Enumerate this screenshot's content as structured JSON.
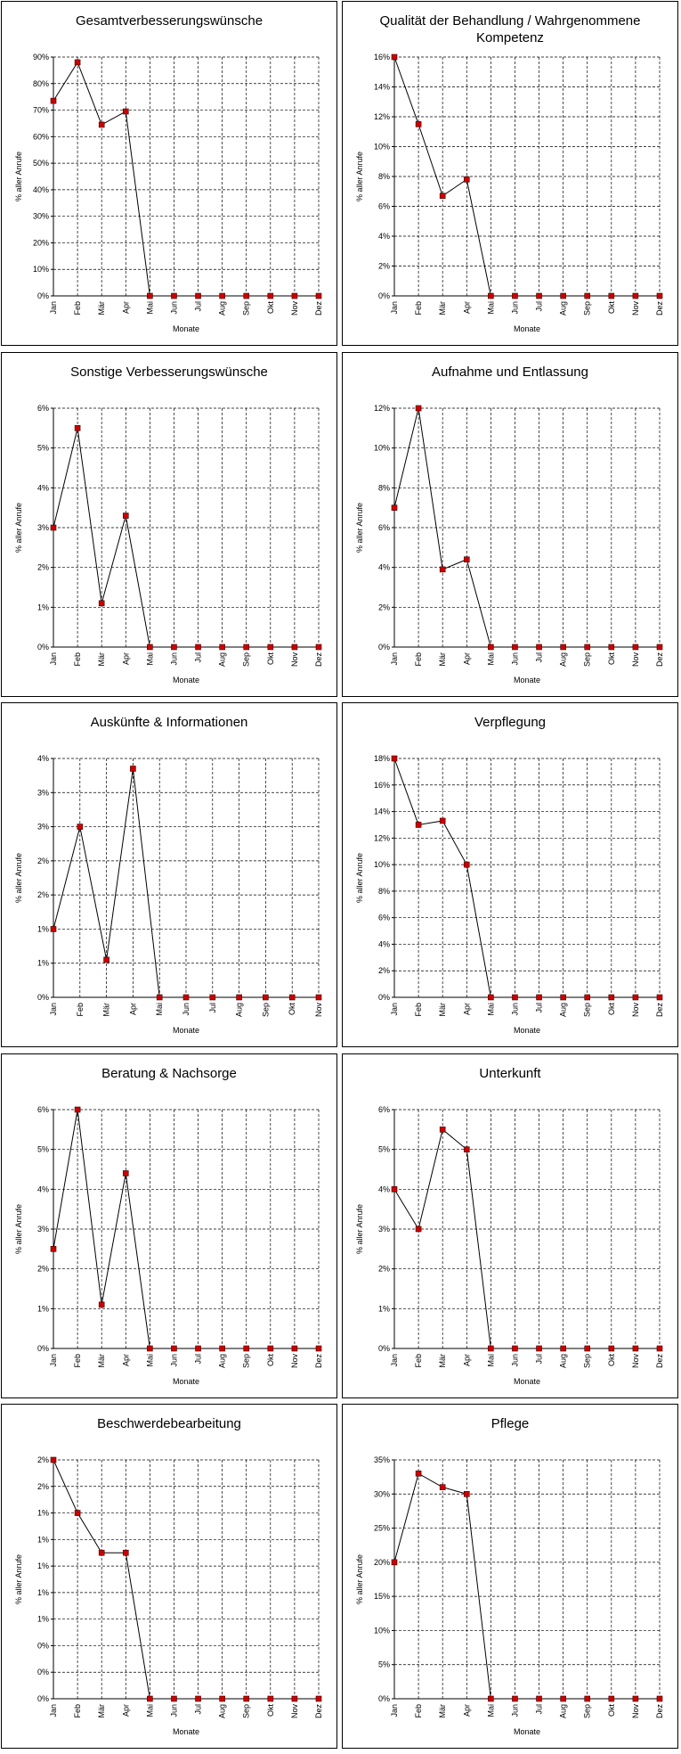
{
  "chart_data": [
    {
      "type": "line",
      "title": "Gesamtverbesserungswünsche",
      "y_label": "% aller Anrufe",
      "x_label": "Monate",
      "categories": [
        "Jan",
        "Feb",
        "Mär",
        "Apr",
        "Mai",
        "Jun",
        "Jul",
        "Aug",
        "Sep",
        "Okt",
        "Nov",
        "Dez"
      ],
      "values": [
        73.5,
        88,
        64.5,
        69.5,
        0,
        0,
        0,
        0,
        0,
        0,
        0,
        0
      ],
      "color": "#000000",
      "marker_color": "#cc0000",
      "grid": true,
      "ylim": [
        0,
        90
      ],
      "yticks": [
        {
          "value": 0,
          "label": "0%"
        },
        {
          "value": 10,
          "label": "10%"
        },
        {
          "value": 20,
          "label": "20%"
        },
        {
          "value": 30,
          "label": "30%"
        },
        {
          "value": 40,
          "label": "40%"
        },
        {
          "value": 50,
          "label": "50%"
        },
        {
          "value": 60,
          "label": "60%"
        },
        {
          "value": 70,
          "label": "70%"
        },
        {
          "value": 80,
          "label": "80%"
        },
        {
          "value": 90,
          "label": "90%"
        }
      ]
    },
    {
      "type": "line",
      "title": "Qualität der Behandlung / Wahrgenommene Kompetenz",
      "y_label": "% aller Anrufe",
      "x_label": "Monate",
      "categories": [
        "Jan",
        "Feb",
        "Mär",
        "Apr",
        "Mai",
        "Jun",
        "Jul",
        "Aug",
        "Sep",
        "Okt",
        "Nov",
        "Dez"
      ],
      "values": [
        16,
        11.5,
        6.7,
        7.8,
        0,
        0,
        0,
        0,
        0,
        0,
        0,
        0
      ],
      "color": "#000000",
      "marker_color": "#cc0000",
      "grid": true,
      "ylim": [
        0,
        16
      ],
      "yticks": [
        {
          "value": 0,
          "label": "0%"
        },
        {
          "value": 2,
          "label": "2%"
        },
        {
          "value": 4,
          "label": "4%"
        },
        {
          "value": 6,
          "label": "6%"
        },
        {
          "value": 8,
          "label": "8%"
        },
        {
          "value": 10,
          "label": "10%"
        },
        {
          "value": 12,
          "label": "12%"
        },
        {
          "value": 14,
          "label": "14%"
        },
        {
          "value": 16,
          "label": "16%"
        }
      ]
    },
    {
      "type": "line",
      "title": "Sonstige Verbesserungswünsche",
      "y_label": "% aller Anrufe",
      "x_label": "Monate",
      "categories": [
        "Jan",
        "Feb",
        "Mär",
        "Apr",
        "Mai",
        "Jun",
        "Jul",
        "Aug",
        "Sep",
        "Okt",
        "Nov",
        "Dez"
      ],
      "values": [
        3,
        5.5,
        1.1,
        3.3,
        0,
        0,
        0,
        0,
        0,
        0,
        0,
        0
      ],
      "color": "#000000",
      "marker_color": "#cc0000",
      "grid": true,
      "ylim": [
        0,
        6
      ],
      "yticks": [
        {
          "value": 0,
          "label": "0%"
        },
        {
          "value": 1,
          "label": "1%"
        },
        {
          "value": 2,
          "label": "2%"
        },
        {
          "value": 3,
          "label": "3%"
        },
        {
          "value": 4,
          "label": "4%"
        },
        {
          "value": 5,
          "label": "5%"
        },
        {
          "value": 6,
          "label": "6%"
        }
      ]
    },
    {
      "type": "line",
      "title": "Aufnahme und Entlassung",
      "y_label": "% aller Anrufe",
      "x_label": "Monate",
      "categories": [
        "Jan",
        "Feb",
        "Mär",
        "Apr",
        "Mai",
        "Jun",
        "Jul",
        "Aug",
        "Sep",
        "Okt",
        "Nov",
        "Dez"
      ],
      "values": [
        7,
        12,
        3.9,
        4.4,
        0,
        0,
        0,
        0,
        0,
        0,
        0,
        0
      ],
      "color": "#000000",
      "marker_color": "#cc0000",
      "grid": true,
      "ylim": [
        0,
        12
      ],
      "yticks": [
        {
          "value": 0,
          "label": "0%"
        },
        {
          "value": 2,
          "label": "2%"
        },
        {
          "value": 4,
          "label": "4%"
        },
        {
          "value": 6,
          "label": "6%"
        },
        {
          "value": 8,
          "label": "8%"
        },
        {
          "value": 10,
          "label": "10%"
        },
        {
          "value": 12,
          "label": "12%"
        }
      ]
    },
    {
      "type": "line",
      "title": "Auskünfte & Informationen",
      "y_label": "% aller Anrufe",
      "x_label": "Monate",
      "categories": [
        "Jan",
        "Feb",
        "Mär",
        "Apr",
        "Mai",
        "Jun",
        "Jul",
        "Aug",
        "Sep",
        "Okt",
        "Nov"
      ],
      "values": [
        1,
        2.5,
        0.55,
        3.35,
        0,
        0,
        0,
        0,
        0,
        0,
        0
      ],
      "color": "#000000",
      "marker_color": "#cc0000",
      "grid": true,
      "ylim": [
        0,
        3.5
      ],
      "yticks": [
        {
          "value": 0,
          "label": "0%"
        },
        {
          "value": 0.5,
          "label": "1%"
        },
        {
          "value": 1,
          "label": "1%"
        },
        {
          "value": 1.5,
          "label": "2%"
        },
        {
          "value": 2,
          "label": "2%"
        },
        {
          "value": 2.5,
          "label": "3%"
        },
        {
          "value": 3,
          "label": "3%"
        },
        {
          "value": 3.5,
          "label": "4%"
        }
      ]
    },
    {
      "type": "line",
      "title": "Verpflegung",
      "y_label": "% aller Anrufe",
      "x_label": "Monate",
      "categories": [
        "Jan",
        "Feb",
        "Mär",
        "Apr",
        "Mai",
        "Jun",
        "Jul",
        "Aug",
        "Sep",
        "Okt",
        "Nov",
        "Dez"
      ],
      "values": [
        18,
        13,
        13.3,
        10,
        0,
        0,
        0,
        0,
        0,
        0,
        0,
        0
      ],
      "color": "#000000",
      "marker_color": "#cc0000",
      "grid": true,
      "ylim": [
        0,
        18
      ],
      "yticks": [
        {
          "value": 0,
          "label": "0%"
        },
        {
          "value": 2,
          "label": "2%"
        },
        {
          "value": 4,
          "label": "4%"
        },
        {
          "value": 6,
          "label": "6%"
        },
        {
          "value": 8,
          "label": "8%"
        },
        {
          "value": 10,
          "label": "10%"
        },
        {
          "value": 12,
          "label": "12%"
        },
        {
          "value": 14,
          "label": "14%"
        },
        {
          "value": 16,
          "label": "16%"
        },
        {
          "value": 18,
          "label": "18%"
        }
      ]
    },
    {
      "type": "line",
      "title": "Beratung & Nachsorge",
      "y_label": "% aller Anrufe",
      "x_label": "Monate",
      "categories": [
        "Jan",
        "Feb",
        "Mär",
        "Apr",
        "Mai",
        "Jun",
        "Jul",
        "Aug",
        "Sep",
        "Okt",
        "Nov",
        "Dez"
      ],
      "values": [
        2.5,
        6,
        1.1,
        4.4,
        0,
        0,
        0,
        0,
        0,
        0,
        0,
        0
      ],
      "color": "#000000",
      "marker_color": "#cc0000",
      "grid": true,
      "ylim": [
        0,
        6
      ],
      "yticks": [
        {
          "value": 0,
          "label": "0%"
        },
        {
          "value": 1,
          "label": "1%"
        },
        {
          "value": 2,
          "label": "2%"
        },
        {
          "value": 3,
          "label": "3%"
        },
        {
          "value": 4,
          "label": "4%"
        },
        {
          "value": 5,
          "label": "5%"
        },
        {
          "value": 6,
          "label": "6%"
        }
      ]
    },
    {
      "type": "line",
      "title": "Unterkunft",
      "y_label": "% aller Anrufe",
      "x_label": "Monate",
      "categories": [
        "Jan",
        "Feb",
        "Mär",
        "Apr",
        "Mai",
        "Jun",
        "Jul",
        "Aug",
        "Sep",
        "Okt",
        "Nov",
        "Dez"
      ],
      "values": [
        4,
        3,
        5.5,
        5,
        0,
        0,
        0,
        0,
        0,
        0,
        0,
        0
      ],
      "color": "#000000",
      "marker_color": "#cc0000",
      "grid": true,
      "ylim": [
        0,
        6
      ],
      "yticks": [
        {
          "value": 0,
          "label": "0%"
        },
        {
          "value": 1,
          "label": "1%"
        },
        {
          "value": 2,
          "label": "2%"
        },
        {
          "value": 3,
          "label": "3%"
        },
        {
          "value": 4,
          "label": "4%"
        },
        {
          "value": 5,
          "label": "5%"
        },
        {
          "value": 6,
          "label": "6%"
        }
      ]
    },
    {
      "type": "line",
      "title": "Beschwerdebearbeitung",
      "y_label": "% aller Anrufe",
      "x_label": "Monate",
      "categories": [
        "Jan",
        "Feb",
        "Mär",
        "Apr",
        "Mai",
        "Jun",
        "Jul",
        "Aug",
        "Sep",
        "Okt",
        "Nov",
        "Dez"
      ],
      "values": [
        1.8,
        1.4,
        1.1,
        1.1,
        0,
        0,
        0,
        0,
        0,
        0,
        0,
        0
      ],
      "color": "#000000",
      "marker_color": "#cc0000",
      "grid": true,
      "ylim": [
        0,
        1.8
      ],
      "yticks": [
        {
          "value": 0,
          "label": "0%"
        },
        {
          "value": 0.2,
          "label": "0%"
        },
        {
          "value": 0.4,
          "label": "0%"
        },
        {
          "value": 0.6,
          "label": "1%"
        },
        {
          "value": 0.8,
          "label": "1%"
        },
        {
          "value": 1,
          "label": "1%"
        },
        {
          "value": 1.2,
          "label": "1%"
        },
        {
          "value": 1.4,
          "label": "1%"
        },
        {
          "value": 1.6,
          "label": "2%"
        },
        {
          "value": 1.8,
          "label": "2%"
        }
      ]
    },
    {
      "type": "line",
      "title": "Pflege",
      "y_label": "% aller Anrufe",
      "x_label": "Monate",
      "categories": [
        "Jan",
        "Feb",
        "Mär",
        "Apr",
        "Mai",
        "Jun",
        "Jul",
        "Aug",
        "Sep",
        "Okt",
        "Nov",
        "Dez"
      ],
      "values": [
        20,
        33,
        31,
        30,
        0,
        0,
        0,
        0,
        0,
        0,
        0,
        0
      ],
      "color": "#000000",
      "marker_color": "#cc0000",
      "grid": true,
      "ylim": [
        0,
        35
      ],
      "yticks": [
        {
          "value": 0,
          "label": "0%"
        },
        {
          "value": 5,
          "label": "5%"
        },
        {
          "value": 10,
          "label": "10%"
        },
        {
          "value": 15,
          "label": "15%"
        },
        {
          "value": 20,
          "label": "20%"
        },
        {
          "value": 25,
          "label": "25%"
        },
        {
          "value": 30,
          "label": "30%"
        },
        {
          "value": 35,
          "label": "35%"
        }
      ]
    }
  ]
}
